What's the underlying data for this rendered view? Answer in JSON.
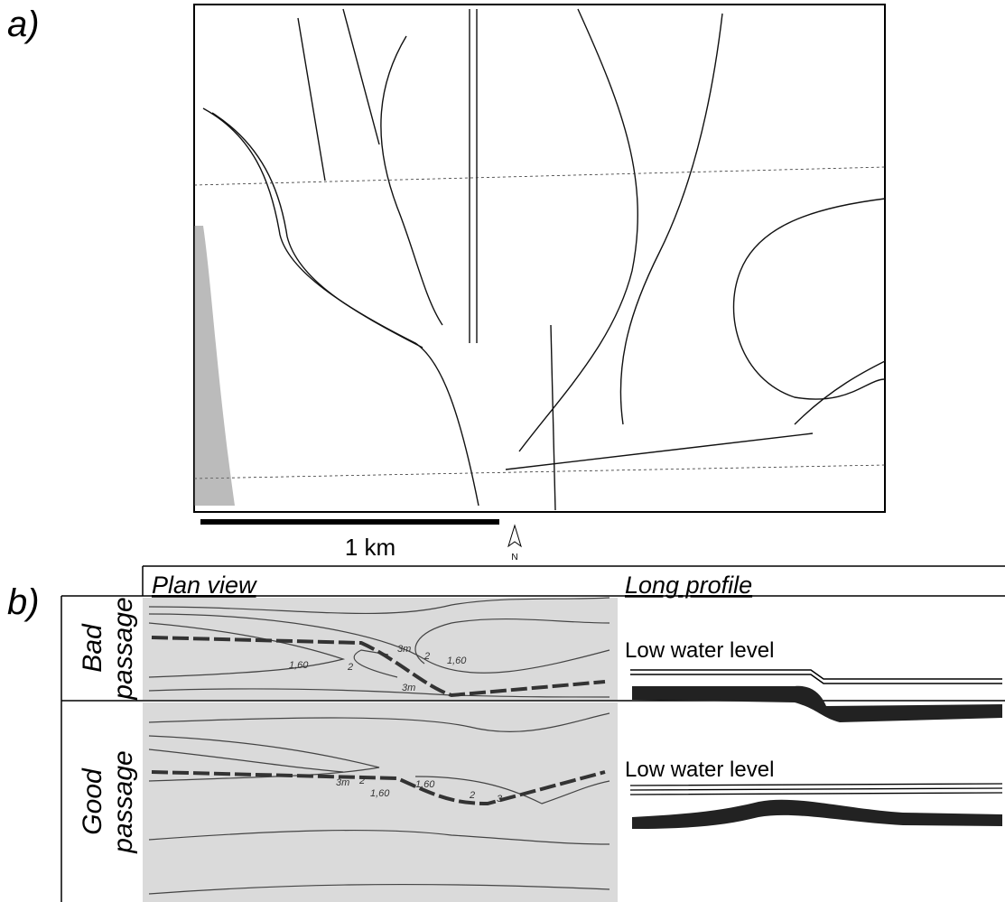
{
  "panel_a": {
    "label": "a)",
    "scale_bar": "1 km",
    "north": "N"
  },
  "panel_b": {
    "label": "b)",
    "columns": [
      "Plan view",
      "Long profile"
    ],
    "rows": [
      {
        "label": [
          "Bad",
          "passage"
        ],
        "contours": [
          "3m",
          "2",
          "1,60",
          "1,60",
          "2",
          "3m"
        ],
        "profile_label": "Low water level"
      },
      {
        "label": [
          "Good",
          "passage"
        ],
        "contours": [
          "3m",
          "2",
          "1,60",
          "1,60",
          "2",
          "3"
        ],
        "profile_label": "Low water level"
      }
    ]
  }
}
